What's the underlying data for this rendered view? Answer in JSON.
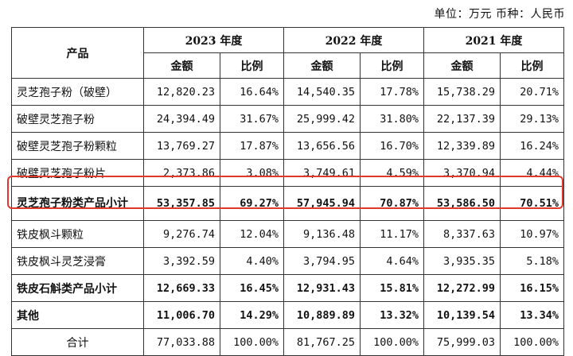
{
  "unit_note": "单位：万元    币种：人民币",
  "header": {
    "product": "产品",
    "years": [
      "2023 年度",
      "2022 年度",
      "2021 年度"
    ],
    "amount": "金额",
    "ratio": "比例"
  },
  "rows": [
    {
      "name": "灵芝孢子粉（破壁）",
      "v": [
        "12,820.23",
        "16.64%",
        "14,540.35",
        "17.78%",
        "15,738.29",
        "20.71%"
      ]
    },
    {
      "name": "破壁灵芝孢子粉",
      "v": [
        "24,394.49",
        "31.67%",
        "25,999.42",
        "31.80%",
        "22,137.39",
        "29.13%"
      ]
    },
    {
      "name": "破壁灵芝孢子粉颗粒",
      "v": [
        "13,769.27",
        "17.87%",
        "13,656.56",
        "16.70%",
        "12,339.89",
        "16.24%"
      ]
    },
    {
      "name": "破壁灵芝孢子粉片",
      "v": [
        "2,373.86",
        "3.08%",
        "3,749.61",
        "4.59%",
        "3,370.94",
        "4.44%"
      ]
    },
    {
      "name": "灵芝孢子粉类产品小计",
      "v": [
        "53,357.85",
        "69.27%",
        "57,945.94",
        "70.87%",
        "53,586.50",
        "70.51%"
      ]
    },
    {
      "name": "铁皮枫斗颗粒",
      "v": [
        "9,276.74",
        "12.04%",
        "9,136.48",
        "11.17%",
        "8,337.63",
        "10.97%"
      ]
    },
    {
      "name": "铁皮枫斗灵芝浸膏",
      "v": [
        "3,392.59",
        "4.40%",
        "3,794.95",
        "4.64%",
        "3,935.35",
        "5.18%"
      ]
    },
    {
      "name": "铁皮石斛类产品小计",
      "v": [
        "12,669.33",
        "16.45%",
        "12,931.43",
        "15.81%",
        "12,272.99",
        "16.15%"
      ]
    },
    {
      "name": "其他",
      "v": [
        "11,006.70",
        "14.29%",
        "10,889.89",
        "13.32%",
        "10,139.54",
        "13.34%"
      ]
    },
    {
      "name": "合计",
      "v": [
        "77,033.88",
        "100.00%",
        "81,767.25",
        "100.00%",
        "75,999.03",
        "100.00%"
      ]
    }
  ]
}
